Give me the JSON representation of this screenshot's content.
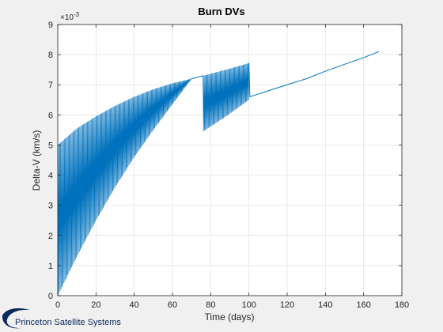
{
  "chart_data": {
    "type": "line",
    "title": "Burn DVs",
    "xlabel": "Time (days)",
    "ylabel": "Delta-V (km/s)",
    "y_exponent_label": "×10",
    "y_exponent": "-3",
    "y_multiplier": 0.001,
    "xlim": [
      0,
      180
    ],
    "ylim": [
      0,
      9
    ],
    "x_ticks": [
      0,
      20,
      40,
      60,
      80,
      100,
      120,
      140,
      160,
      180
    ],
    "y_ticks": [
      0,
      1,
      2,
      3,
      4,
      5,
      6,
      7,
      8,
      9
    ],
    "grid": true,
    "line_color": "#0072bd",
    "series": [
      {
        "description_points": "Sampled envelope of oscillating burn delta-V (values in units of 1e-3 km/s)",
        "segments": [
          {
            "kind": "dense_oscillation",
            "x": [
              0,
              70
            ],
            "upper": [
              [
                0,
                5.0
              ],
              [
                10,
                5.55
              ],
              [
                20,
                5.95
              ],
              [
                30,
                6.3
              ],
              [
                40,
                6.6
              ],
              [
                50,
                6.85
              ],
              [
                60,
                7.05
              ],
              [
                70,
                7.2
              ]
            ],
            "lower": [
              [
                0,
                0.0
              ],
              [
                10,
                1.3
              ],
              [
                20,
                2.5
              ],
              [
                30,
                3.6
              ],
              [
                40,
                4.6
              ],
              [
                50,
                5.5
              ],
              [
                60,
                6.35
              ],
              [
                70,
                7.2
              ]
            ]
          },
          {
            "kind": "line",
            "points": [
              [
                70,
                7.2
              ],
              [
                76,
                7.3
              ]
            ]
          },
          {
            "kind": "dense_oscillation",
            "x": [
              76,
              100
            ],
            "upper": [
              [
                76,
                7.3
              ],
              [
                88,
                7.5
              ],
              [
                100,
                7.72
              ]
            ],
            "lower": [
              [
                76,
                5.45
              ],
              [
                88,
                5.95
              ],
              [
                100,
                6.5
              ]
            ]
          },
          {
            "kind": "line",
            "points": [
              [
                100,
                7.72
              ],
              [
                100.5,
                6.6
              ],
              [
                110,
                6.8
              ],
              [
                120,
                7.0
              ],
              [
                130,
                7.2
              ],
              [
                140,
                7.45
              ],
              [
                150,
                7.68
              ],
              [
                160,
                7.9
              ],
              [
                168,
                8.1
              ]
            ]
          }
        ]
      }
    ]
  },
  "logo": {
    "text": "Princeton Satellite Systems",
    "color": "#0b2a5b"
  }
}
